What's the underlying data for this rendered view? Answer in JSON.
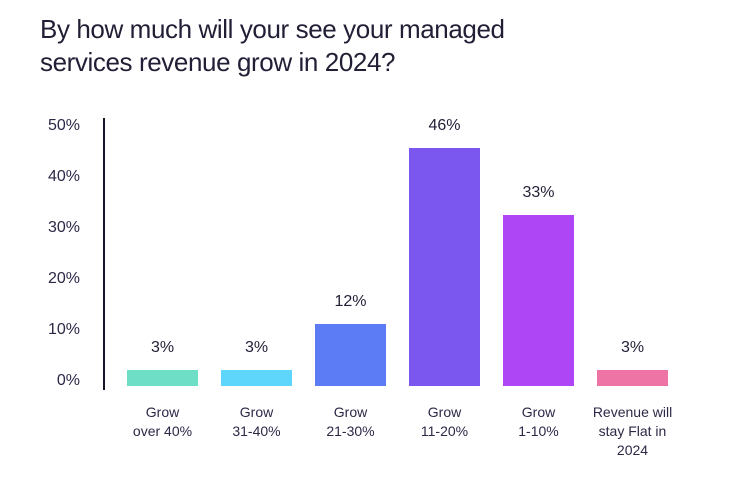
{
  "header": {
    "title": "By how much will your see your managed services revenue grow in 2024?",
    "title_lines": [
      "By how much will your see your managed",
      "services revenue grow in 2024?"
    ]
  },
  "chart_data": {
    "type": "bar",
    "title": "By how much will your see your managed services revenue grow in 2024?",
    "categories": [
      "Grow over 40%",
      "Grow 31-40%",
      "Grow 21-30%",
      "Grow 11-20%",
      "Grow 1-10%",
      "Revenue will stay Flat in 2024"
    ],
    "category_lines": [
      [
        "Grow",
        "over 40%"
      ],
      [
        "Grow",
        "31-40%"
      ],
      [
        "Grow",
        "21-30%"
      ],
      [
        "Grow",
        "11-20%"
      ],
      [
        "Grow",
        "1-10%"
      ],
      [
        "Revenue will",
        "stay Flat in",
        "2024"
      ]
    ],
    "values": [
      3,
      3,
      12,
      46,
      33,
      3
    ],
    "value_labels": [
      "3%",
      "3%",
      "12%",
      "46%",
      "33%",
      "3%"
    ],
    "bar_colors": [
      "#6FDEC6",
      "#5ED5FA",
      "#5B7CF5",
      "#7C57EF",
      "#AF46F6",
      "#EE74A6"
    ],
    "axis_color": "#16132b",
    "text_color": "#2c2847",
    "xlabel": "",
    "ylabel": "",
    "ylim": [
      0,
      50
    ],
    "yticks": [
      0,
      10,
      20,
      30,
      40,
      50
    ],
    "ytick_labels": [
      "0%",
      "10%",
      "20%",
      "30%",
      "40%",
      "50%"
    ],
    "grid": false,
    "legend": false
  }
}
